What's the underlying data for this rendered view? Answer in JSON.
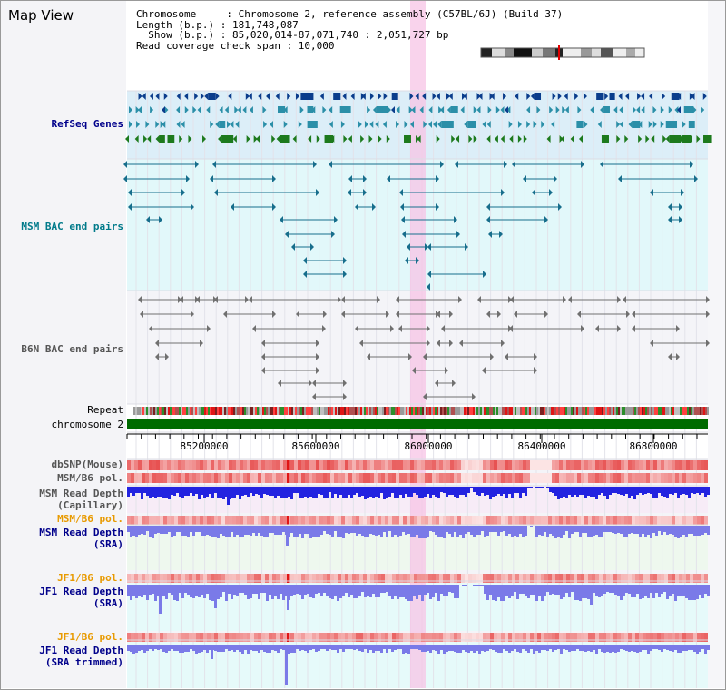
{
  "title": "Map View",
  "info": {
    "chromosome_line": "Chromosome     : Chromosome 2, reference assembly (C57BL/6J) (Build 37)",
    "length_line": "Length (b.p.) : 181,748,087",
    "show_line": "  Show (b.p.) : 85,020,014-87,071,740 : 2,051,727 bp",
    "coverage_line": "Read coverage check span : 10,000"
  },
  "tracks": {
    "refseq_genes": "RefSeq Genes",
    "msm_bac": "MSM BAC end pairs",
    "b6n_bac": "B6N BAC end pairs",
    "repeat": "Repeat",
    "chromosome": "chromosome 2",
    "dbsnp": "dbSNP(Mouse)",
    "msm_b6_pol_1": "MSM/B6 pol.",
    "msm_read_depth_cap_1": "MSM Read Depth",
    "msm_read_depth_cap_2": "(Capillary)",
    "msm_b6_pol_2": "MSM/B6 pol.",
    "msm_read_depth_sra_1": "MSM Read Depth",
    "msm_read_depth_sra_2": "(SRA)",
    "jf1_b6_pol_1": "JF1/B6 pol.",
    "jf1_read_depth_sra_1": "JF1 Read Depth",
    "jf1_read_depth_sra_2": "(SRA)",
    "jf1_b6_pol_2": "JF1/B6 pol.",
    "jf1_read_depth_trim_1": "JF1 Read Depth",
    "jf1_read_depth_trim_2": "(SRA trimmed)"
  },
  "axis": {
    "ticks": [
      "85200000",
      "85600000",
      "86000000",
      "86400000",
      "86800000"
    ]
  },
  "colors": {
    "refseq_bg": "#dceef8",
    "msm_bg": "#e2f8fa",
    "b6n_bg": "#f4f4f8",
    "highlight": "#f7c4e6",
    "chromosome": "#006b00",
    "gene_dark": "#0b3d8c",
    "gene_teal": "#2b8fa8",
    "gene_green": "#1d7a1d",
    "msm_line": "#176e8c",
    "b6n_line": "#707070",
    "depth_blue": "#2323e0",
    "depth_violet": "#7a7ae8",
    "pol_red": "#e01515",
    "label_orange": "#e89a00",
    "label_navy": "#00008b",
    "label_teal": "#007a8a",
    "label_gray": "#555555"
  }
}
